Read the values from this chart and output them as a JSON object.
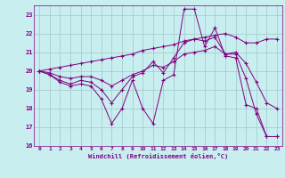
{
  "xlabel": "Windchill (Refroidissement éolien,°C)",
  "background_color": "#c8eef0",
  "grid_color": "#a0c8c8",
  "line_color": "#800080",
  "xlim": [
    -0.5,
    23.5
  ],
  "ylim": [
    16,
    23.5
  ],
  "yticks": [
    16,
    17,
    18,
    19,
    20,
    21,
    22,
    23
  ],
  "xticks": [
    0,
    1,
    2,
    3,
    4,
    5,
    6,
    7,
    8,
    9,
    10,
    11,
    12,
    13,
    14,
    15,
    16,
    17,
    18,
    19,
    20,
    21,
    22,
    23
  ],
  "series": [
    [
      20.0,
      19.8,
      19.4,
      19.2,
      19.3,
      19.2,
      18.5,
      17.2,
      18.0,
      19.5,
      18.0,
      17.2,
      19.5,
      19.8,
      23.3,
      23.3,
      21.3,
      22.3,
      20.8,
      20.7,
      18.2,
      18.0,
      16.5,
      16.5
    ],
    [
      20.0,
      19.8,
      19.5,
      19.3,
      19.5,
      19.4,
      19.0,
      18.3,
      19.0,
      19.7,
      19.9,
      20.5,
      19.9,
      20.7,
      21.5,
      21.7,
      21.6,
      21.8,
      20.9,
      20.9,
      19.6,
      17.7,
      16.5,
      16.5
    ],
    [
      20.0,
      19.9,
      19.7,
      19.6,
      19.7,
      19.7,
      19.5,
      19.2,
      19.5,
      19.8,
      20.0,
      20.3,
      20.2,
      20.5,
      20.9,
      21.0,
      21.1,
      21.3,
      20.9,
      21.0,
      20.4,
      19.4,
      18.3,
      18.0
    ],
    [
      20.0,
      20.1,
      20.2,
      20.3,
      20.4,
      20.5,
      20.6,
      20.7,
      20.8,
      20.9,
      21.1,
      21.2,
      21.3,
      21.4,
      21.6,
      21.7,
      21.8,
      21.9,
      22.0,
      21.8,
      21.5,
      21.5,
      21.7,
      21.7
    ]
  ]
}
